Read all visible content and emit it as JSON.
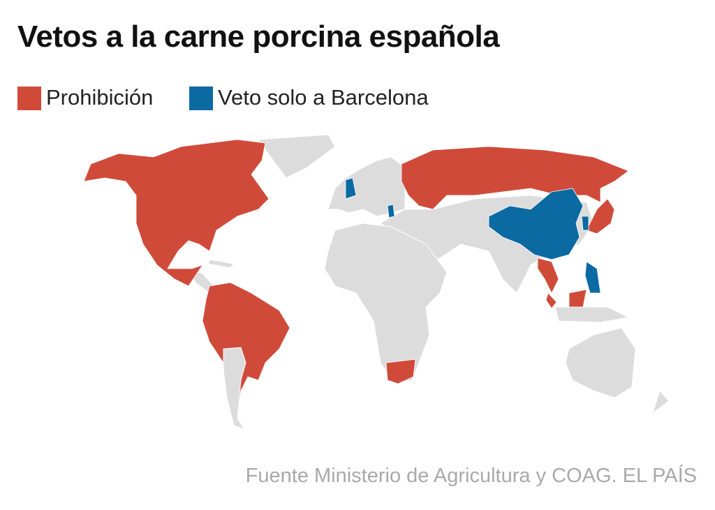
{
  "header": {
    "title": "Vetos a la carne porcina española"
  },
  "legend": [
    {
      "label": "Prohibición",
      "color": "#d04a3a"
    },
    {
      "label": "Veto solo a Barcelona",
      "color": "#0b6aa2"
    }
  ],
  "source": "Fuente Ministerio de Agricultura y COAG. EL PAÍS"
}
